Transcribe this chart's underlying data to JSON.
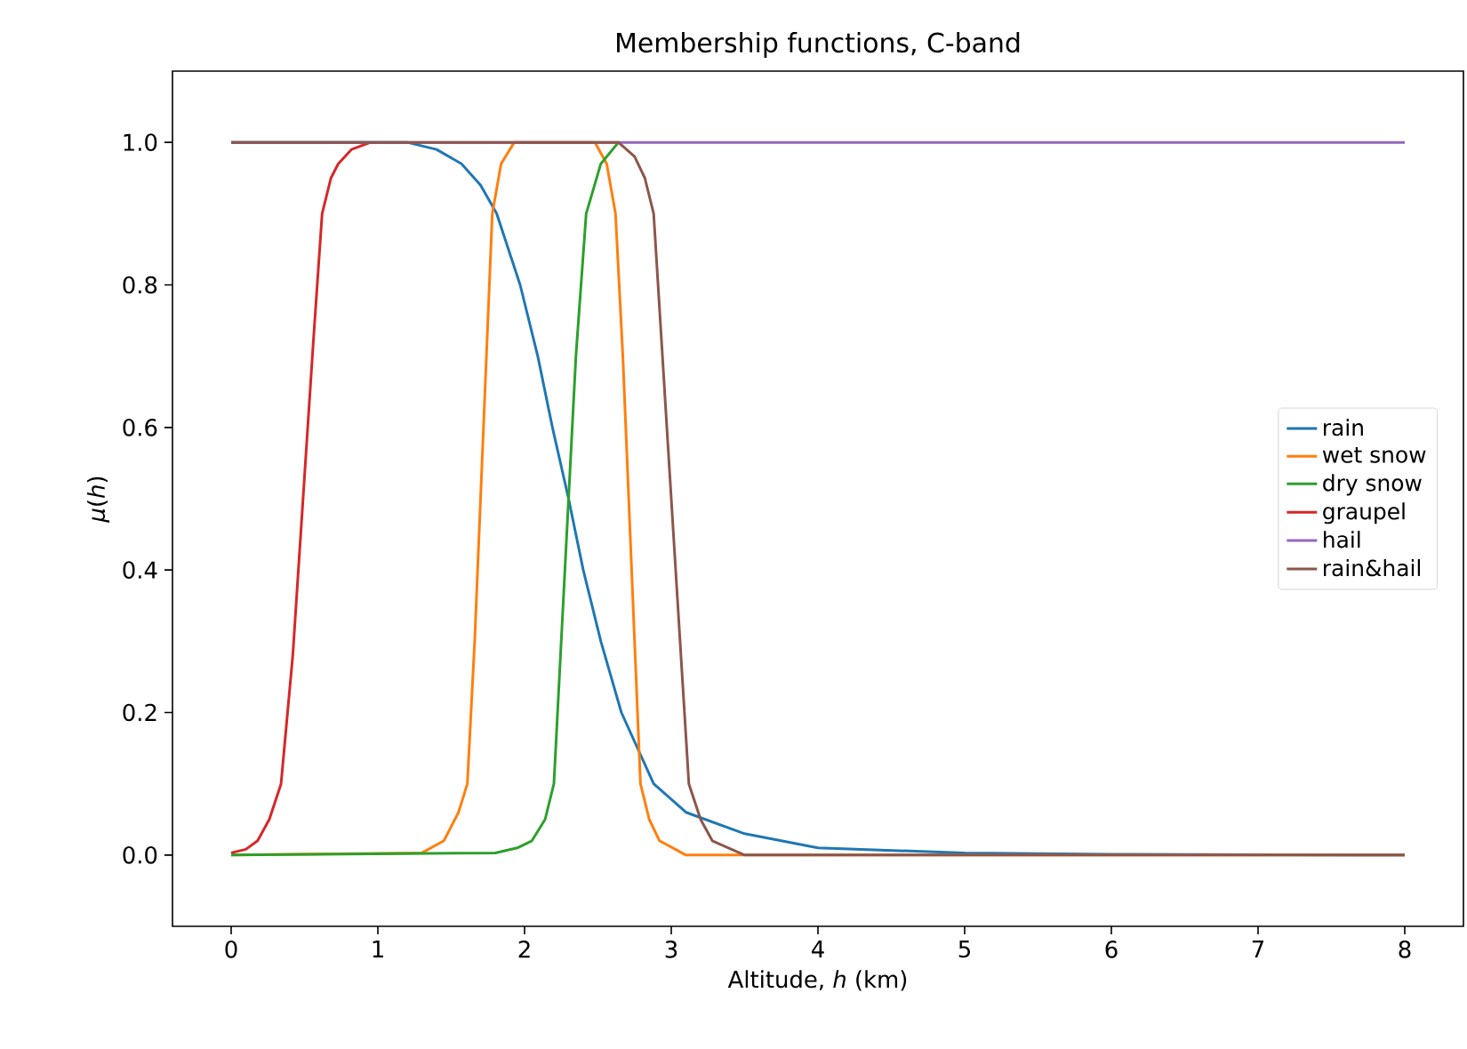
{
  "chart_data": {
    "type": "line",
    "title": "Membership functions, C-band",
    "xlabel": "Altitude, *h* (km)",
    "ylabel": "*μ*(*h*)",
    "xlim": [
      -0.4,
      8.4
    ],
    "ylim": [
      -0.1,
      1.1
    ],
    "xticks": [
      0,
      1,
      2,
      3,
      4,
      5,
      6,
      7,
      8
    ],
    "yticks": [
      {
        "value": 0,
        "label": "0.0"
      },
      {
        "value": 0.2,
        "label": "0.2"
      },
      {
        "value": 0.4,
        "label": "0.4"
      },
      {
        "value": 0.6,
        "label": "0.6"
      },
      {
        "value": 0.8,
        "label": "0.8"
      },
      {
        "value": 1,
        "label": "1.0"
      }
    ],
    "legend": "right",
    "series": [
      {
        "name": "rain",
        "color": "#1f77b4",
        "x": [
          0,
          1.2,
          1.4,
          1.57,
          1.7,
          1.81,
          1.97,
          2.09,
          2.19,
          2.3,
          2.4,
          2.52,
          2.66,
          2.88,
          3.1,
          3.5,
          4,
          5,
          6,
          8
        ],
        "values": [
          1,
          1,
          0.99,
          0.97,
          0.94,
          0.9,
          0.8,
          0.7,
          0.6,
          0.5,
          0.4,
          0.3,
          0.2,
          0.1,
          0.06,
          0.03,
          0.01,
          0.003,
          0.001,
          0
        ]
      },
      {
        "name": "wet snow",
        "color": "#ff7f0e",
        "x": [
          0,
          1.3,
          1.45,
          1.55,
          1.61,
          1.66,
          1.7,
          1.74,
          1.78,
          1.84,
          1.93,
          2.48,
          2.56,
          2.62,
          2.67,
          2.71,
          2.75,
          2.79,
          2.85,
          2.92,
          3.1,
          8
        ],
        "values": [
          0,
          0.003,
          0.02,
          0.06,
          0.1,
          0.3,
          0.5,
          0.7,
          0.9,
          0.97,
          1,
          1,
          0.97,
          0.9,
          0.7,
          0.5,
          0.3,
          0.1,
          0.05,
          0.02,
          0,
          0
        ]
      },
      {
        "name": "dry snow",
        "color": "#2ca02c",
        "x": [
          0,
          1.8,
          1.95,
          2.05,
          2.14,
          2.2,
          2.25,
          2.3,
          2.35,
          2.42,
          2.52,
          2.64
        ],
        "values": [
          0,
          0.003,
          0.01,
          0.02,
          0.05,
          0.1,
          0.3,
          0.5,
          0.7,
          0.9,
          0.97,
          1
        ]
      },
      {
        "name": "graupel",
        "color": "#d62728",
        "x": [
          0,
          0.1,
          0.18,
          0.26,
          0.34,
          0.42,
          0.49,
          0.56,
          0.62,
          0.68,
          0.73,
          0.82,
          0.95
        ],
        "values": [
          0.003,
          0.008,
          0.02,
          0.05,
          0.1,
          0.28,
          0.5,
          0.72,
          0.9,
          0.95,
          0.97,
          0.99,
          1
        ]
      },
      {
        "name": "hail",
        "color": "#9467bd",
        "x": [
          0,
          8
        ],
        "values": [
          1,
          1
        ]
      },
      {
        "name": "rain&hail",
        "color": "#8c564b",
        "x": [
          0,
          2.64,
          2.75,
          2.82,
          2.88,
          2.94,
          3.0,
          3.06,
          3.12,
          3.2,
          3.28,
          3.5,
          8
        ],
        "values": [
          1,
          1,
          0.98,
          0.95,
          0.9,
          0.7,
          0.5,
          0.3,
          0.1,
          0.05,
          0.02,
          0,
          0
        ]
      }
    ]
  }
}
